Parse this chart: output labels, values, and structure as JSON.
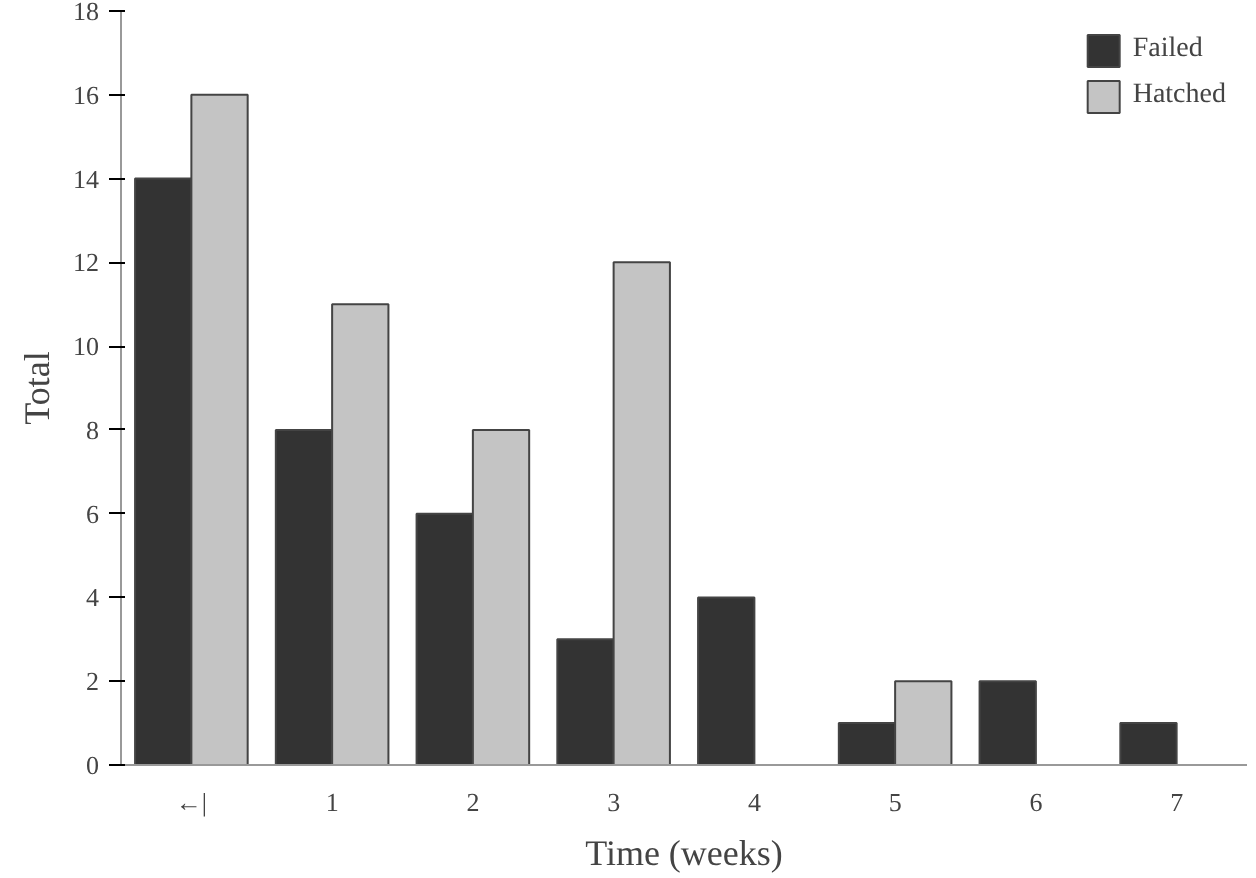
{
  "chart_data": {
    "type": "bar",
    "xlabel": "Time (weeks)",
    "ylabel": "Total",
    "categories": [
      "←|",
      "1",
      "2",
      "3",
      "4",
      "5",
      "6",
      "7"
    ],
    "series": [
      {
        "name": "Failed",
        "color": "#333333",
        "values": [
          14,
          8,
          6,
          3,
          4,
          1,
          2,
          1
        ]
      },
      {
        "name": "Hatched",
        "color": "#c4c4c4",
        "values": [
          16,
          11,
          8,
          12,
          null,
          2,
          null,
          null
        ]
      }
    ],
    "ylim": [
      0,
      18
    ],
    "yticks": [
      0,
      2,
      4,
      6,
      8,
      10,
      12,
      14,
      16,
      18
    ],
    "grid": false,
    "legend": "top right"
  }
}
